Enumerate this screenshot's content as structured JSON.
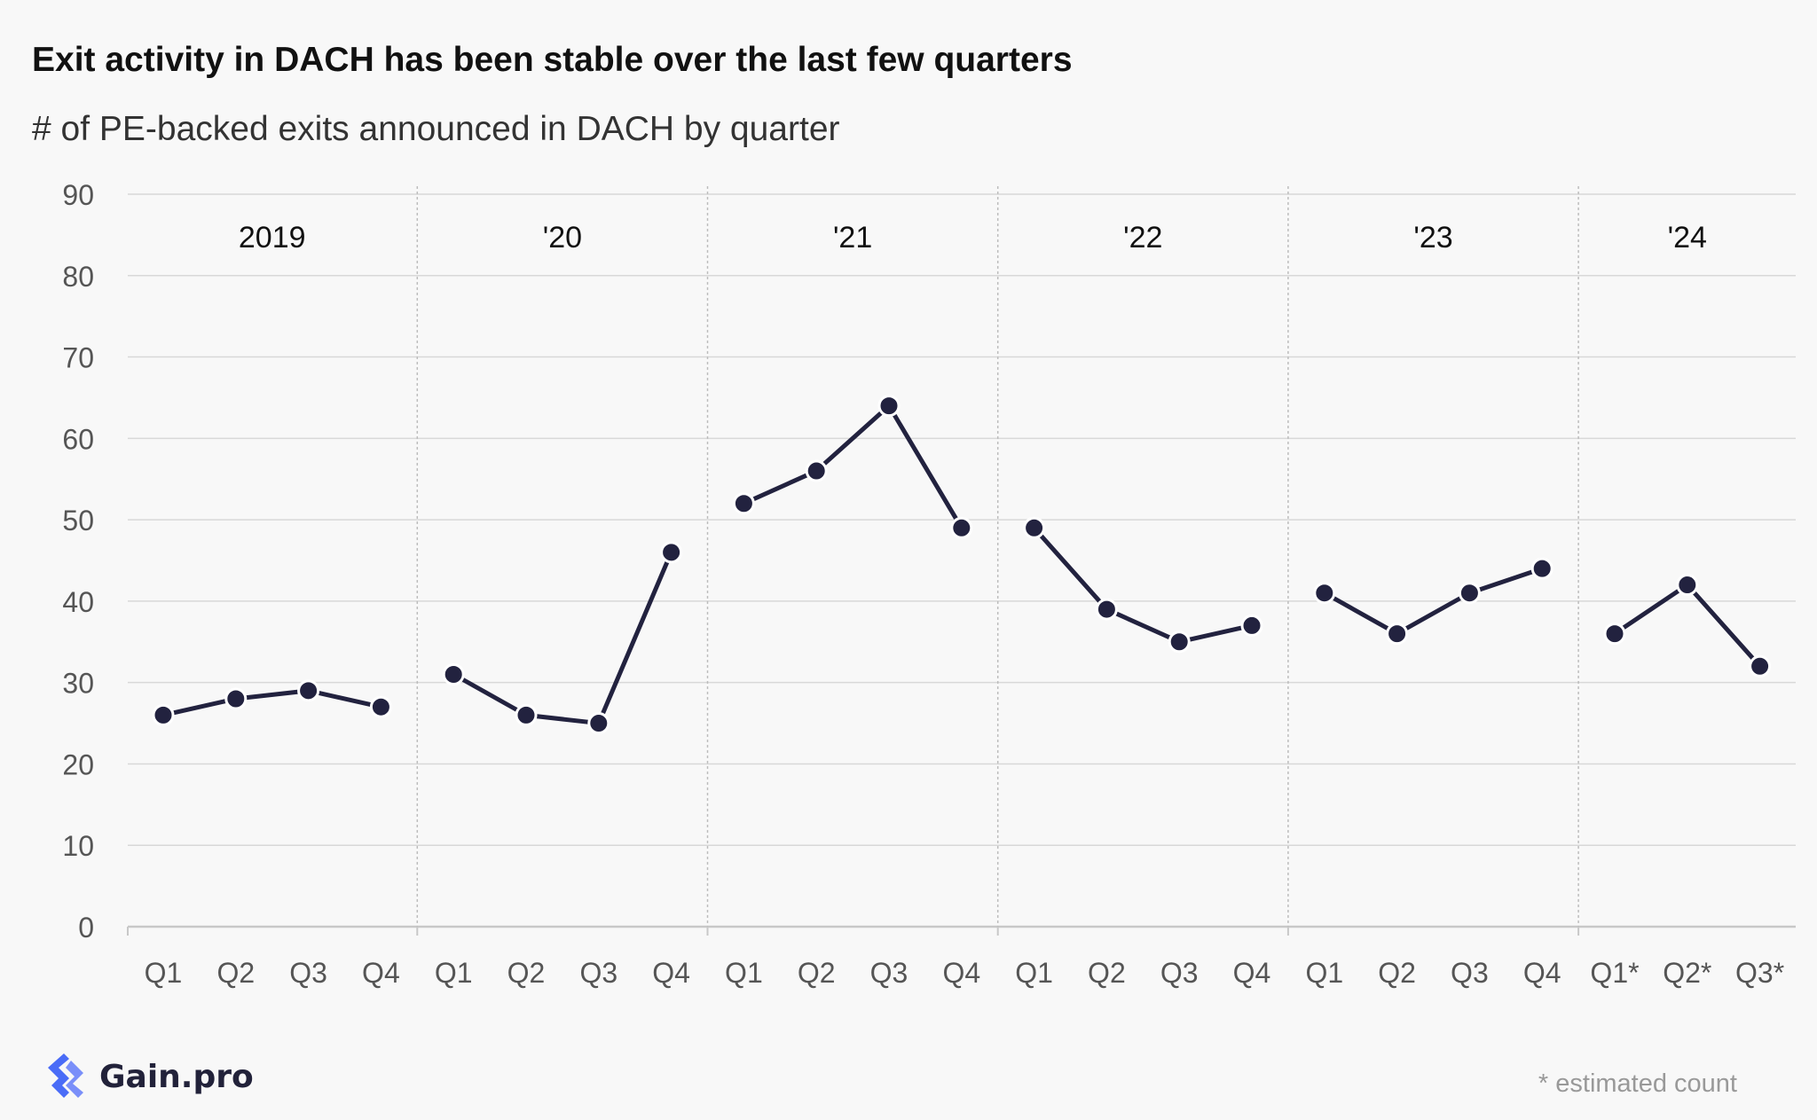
{
  "title": "Exit activity in DACH has been stable over the last few quarters",
  "subtitle": "# of PE-backed exits announced in DACH by quarter",
  "brand": {
    "name": "Gain.pro",
    "color": "#4a6cf7",
    "icon": "gain-pro-logo-icon"
  },
  "footnote": "* estimated count",
  "colors": {
    "line": "#22223f",
    "grid": "#d8d8d8",
    "axis": "#c8c8c8",
    "text": "#555555",
    "year": "#111111",
    "separator": "#bdbdbd"
  },
  "chart_data": {
    "type": "line",
    "title": "Exit activity in DACH has been stable over the last few quarters",
    "subtitle": "# of PE-backed exits announced in DACH by quarter",
    "xlabel": "",
    "ylabel": "",
    "ylim": [
      0,
      90
    ],
    "yticks": [
      "0",
      "10",
      "20",
      "30",
      "40",
      "50",
      "60",
      "70",
      "80",
      "90"
    ],
    "grid": true,
    "years": [
      "2019",
      "'20",
      "'21",
      "'22",
      "'23",
      "'24"
    ],
    "categories": [
      "Q1",
      "Q2",
      "Q3",
      "Q4",
      "Q1",
      "Q2",
      "Q3",
      "Q4",
      "Q1",
      "Q2",
      "Q3",
      "Q4",
      "Q1",
      "Q2",
      "Q3",
      "Q4",
      "Q1",
      "Q2",
      "Q3",
      "Q4",
      "Q1*",
      "Q2*",
      "Q3*"
    ],
    "year_index": [
      0,
      0,
      0,
      0,
      1,
      1,
      1,
      1,
      2,
      2,
      2,
      2,
      3,
      3,
      3,
      3,
      4,
      4,
      4,
      4,
      5,
      5,
      5
    ],
    "values": [
      26,
      28,
      29,
      27,
      31,
      26,
      25,
      46,
      52,
      56,
      64,
      49,
      49,
      39,
      35,
      37,
      41,
      36,
      41,
      44,
      36,
      42,
      32
    ]
  }
}
